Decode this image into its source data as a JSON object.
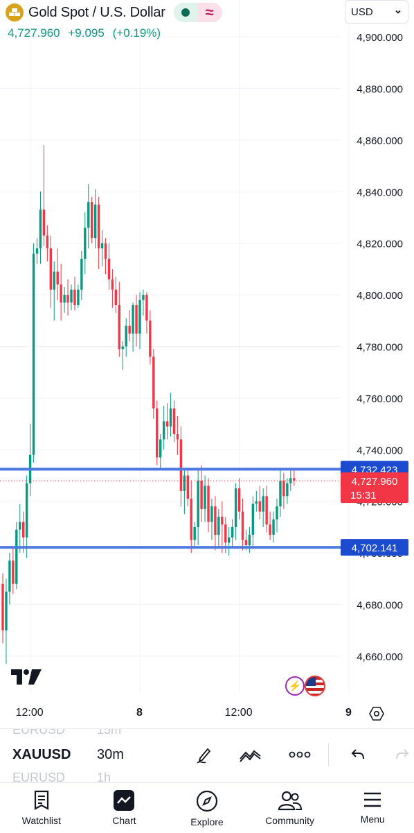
{
  "symbol_header": {
    "title": "Gold Spot / U.S. Dollar",
    "price": "4,727.960",
    "change": "+9.095",
    "change_pct": "(+0.19%)",
    "market_open_color": "#0a6b55",
    "alt_icon": "≈"
  },
  "currency_select": {
    "value": "USD"
  },
  "colors": {
    "up": "#089981",
    "down": "#f23645",
    "hline": "#4f7ae0",
    "label_blue": "#1c4bd0",
    "label_red": "#f23645"
  },
  "chart_data": {
    "type": "candlestick",
    "symbol": "XAUUSD",
    "interval": "30m",
    "ylim": [
      4652,
      4912
    ],
    "y_ticks": [
      "4,660.000",
      "4,680.000",
      "4,700.000",
      "4,720.000",
      "4,740.000",
      "4,760.000",
      "4,780.000",
      "4,800.000",
      "4,820.000",
      "4,840.000",
      "4,860.000",
      "4,880.000",
      "4,900.000"
    ],
    "y_tick_values": [
      4660,
      4680,
      4700,
      4720,
      4740,
      4760,
      4780,
      4800,
      4820,
      4840,
      4860,
      4880,
      4900
    ],
    "x_ticks": [
      {
        "label": "12:00",
        "index": 8,
        "bold": false
      },
      {
        "label": "8",
        "index": 40,
        "bold": true
      },
      {
        "label": "12:00",
        "index": 69,
        "bold": false
      },
      {
        "label": "9",
        "index": 101,
        "bold": true
      }
    ],
    "candles": [
      [
        4688,
        4692,
        4665,
        4670
      ],
      [
        4670,
        4690,
        4657,
        4685
      ],
      [
        4685,
        4700,
        4680,
        4697
      ],
      [
        4697,
        4702,
        4684,
        4688
      ],
      [
        4688,
        4712,
        4686,
        4709
      ],
      [
        4709,
        4719,
        4700,
        4712
      ],
      [
        4712,
        4716,
        4700,
        4706
      ],
      [
        4706,
        4730,
        4698,
        4727
      ],
      [
        4727,
        4750,
        4722,
        4738
      ],
      [
        4738,
        4820,
        4735,
        4816
      ],
      [
        4816,
        4822,
        4812,
        4818
      ],
      [
        4818,
        4840,
        4812,
        4833
      ],
      [
        4833,
        4858,
        4819,
        4823
      ],
      [
        4823,
        4827,
        4813,
        4818
      ],
      [
        4818,
        4823,
        4795,
        4802
      ],
      [
        4802,
        4813,
        4790,
        4809
      ],
      [
        4809,
        4818,
        4798,
        4804
      ],
      [
        4804,
        4812,
        4790,
        4797
      ],
      [
        4797,
        4803,
        4793,
        4800
      ],
      [
        4800,
        4806,
        4792,
        4797
      ],
      [
        4797,
        4804,
        4794,
        4802
      ],
      [
        4802,
        4807,
        4794,
        4796
      ],
      [
        4796,
        4804,
        4795,
        4802
      ],
      [
        4802,
        4817,
        4798,
        4814
      ],
      [
        4814,
        4832,
        4808,
        4826
      ],
      [
        4826,
        4843,
        4818,
        4836
      ],
      [
        4836,
        4838,
        4820,
        4822
      ],
      [
        4822,
        4841,
        4818,
        4835
      ],
      [
        4835,
        4838,
        4810,
        4818
      ],
      [
        4818,
        4825,
        4811,
        4820
      ],
      [
        4820,
        4822,
        4808,
        4814
      ],
      [
        4814,
        4820,
        4802,
        4806
      ],
      [
        4806,
        4810,
        4795,
        4802
      ],
      [
        4802,
        4807,
        4793,
        4796
      ],
      [
        4796,
        4805,
        4776,
        4779
      ],
      [
        4779,
        4782,
        4771,
        4780
      ],
      [
        4780,
        4791,
        4776,
        4788
      ],
      [
        4788,
        4794,
        4782,
        4785
      ],
      [
        4785,
        4797,
        4778,
        4796
      ],
      [
        4796,
        4800,
        4780,
        4785
      ],
      [
        4785,
        4801,
        4779,
        4798
      ],
      [
        4798,
        4802,
        4792,
        4800
      ],
      [
        4800,
        4801,
        4785,
        4790
      ],
      [
        4790,
        4794,
        4773,
        4776
      ],
      [
        4776,
        4779,
        4752,
        4756
      ],
      [
        4756,
        4759,
        4734,
        4737
      ],
      [
        4737,
        4746,
        4733,
        4744
      ],
      [
        4744,
        4757,
        4740,
        4751
      ],
      [
        4751,
        4758,
        4744,
        4749
      ],
      [
        4749,
        4762,
        4745,
        4756
      ],
      [
        4756,
        4759,
        4743,
        4746
      ],
      [
        4746,
        4753,
        4738,
        4744
      ],
      [
        4744,
        4749,
        4718,
        4724
      ],
      [
        4724,
        4732,
        4715,
        4730
      ],
      [
        4730,
        4733,
        4718,
        4721
      ],
      [
        4721,
        4728,
        4700,
        4705
      ],
      [
        4705,
        4712,
        4702,
        4710
      ],
      [
        4710,
        4732,
        4703,
        4728
      ],
      [
        4728,
        4734,
        4712,
        4717
      ],
      [
        4717,
        4730,
        4712,
        4726
      ],
      [
        4726,
        4729,
        4708,
        4712
      ],
      [
        4712,
        4721,
        4705,
        4718
      ],
      [
        4718,
        4722,
        4701,
        4707
      ],
      [
        4707,
        4717,
        4702,
        4714
      ],
      [
        4714,
        4720,
        4700,
        4711
      ],
      [
        4711,
        4714,
        4700,
        4704
      ],
      [
        4704,
        4710,
        4699,
        4706
      ],
      [
        4706,
        4713,
        4702,
        4710
      ],
      [
        4710,
        4727,
        4705,
        4725
      ],
      [
        4725,
        4729,
        4713,
        4716
      ],
      [
        4716,
        4721,
        4701,
        4705
      ],
      [
        4705,
        4709,
        4701,
        4703
      ],
      [
        4703,
        4710,
        4700,
        4707
      ],
      [
        4707,
        4722,
        4702,
        4719
      ],
      [
        4719,
        4724,
        4716,
        4720
      ],
      [
        4720,
        4726,
        4713,
        4716
      ],
      [
        4716,
        4725,
        4710,
        4722
      ],
      [
        4722,
        4726,
        4708,
        4711
      ],
      [
        4711,
        4716,
        4705,
        4707
      ],
      [
        4707,
        4716,
        4704,
        4713
      ],
      [
        4713,
        4721,
        4708,
        4718
      ],
      [
        4718,
        4732,
        4714,
        4728
      ],
      [
        4728,
        4731,
        4717,
        4722
      ],
      [
        4722,
        4729,
        4719,
        4727
      ],
      [
        4727,
        4732,
        4724,
        4729
      ],
      [
        4729,
        4733,
        4726,
        4728
      ]
    ],
    "horizontal_lines": [
      {
        "value": 4732.423,
        "label": "4,732.423"
      },
      {
        "value": 4702.141,
        "label": "4,702.141"
      }
    ],
    "last_price": {
      "value": 4727.96,
      "label": "4,727.960",
      "countdown": "15:31"
    }
  },
  "toolbar": {
    "symbol": "XAUUSD",
    "interval": "30m",
    "ghost_prev_symbol": "EURUSD",
    "ghost_prev_interval": "15m",
    "ghost_next_symbol": "EURUSD",
    "ghost_next_interval": "1h"
  },
  "nav": {
    "watchlist": "Watchlist",
    "chart": "Chart",
    "explore": "Explore",
    "community": "Community",
    "menu": "Menu"
  }
}
